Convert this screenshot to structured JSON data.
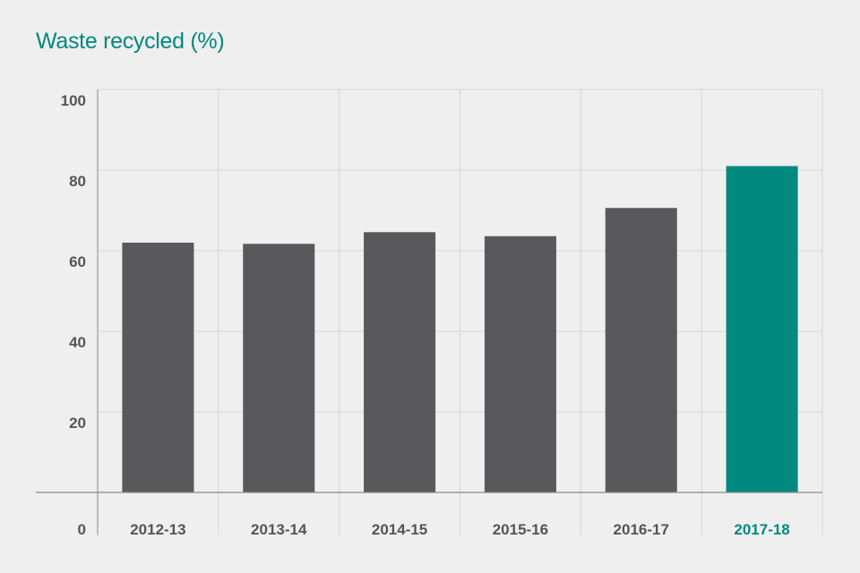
{
  "chart_data": {
    "type": "bar",
    "title": "Waste recycled (%)",
    "categories": [
      "2012-13",
      "2013-14",
      "2014-15",
      "2015-16",
      "2016-17",
      "2017-18"
    ],
    "values": [
      62,
      61.7,
      64.6,
      63.6,
      70.6,
      81
    ],
    "yticks": [
      "0",
      "20",
      "40",
      "60",
      "80",
      "100"
    ],
    "ylim": [
      0,
      100
    ],
    "grid": true,
    "highlight_index": 5,
    "colors": {
      "bar": "#59585a",
      "highlight": "#00897f",
      "title": "#00897f",
      "grid": "#d6d6d6",
      "axis": "#8a8a8a",
      "label": "#555557"
    }
  }
}
